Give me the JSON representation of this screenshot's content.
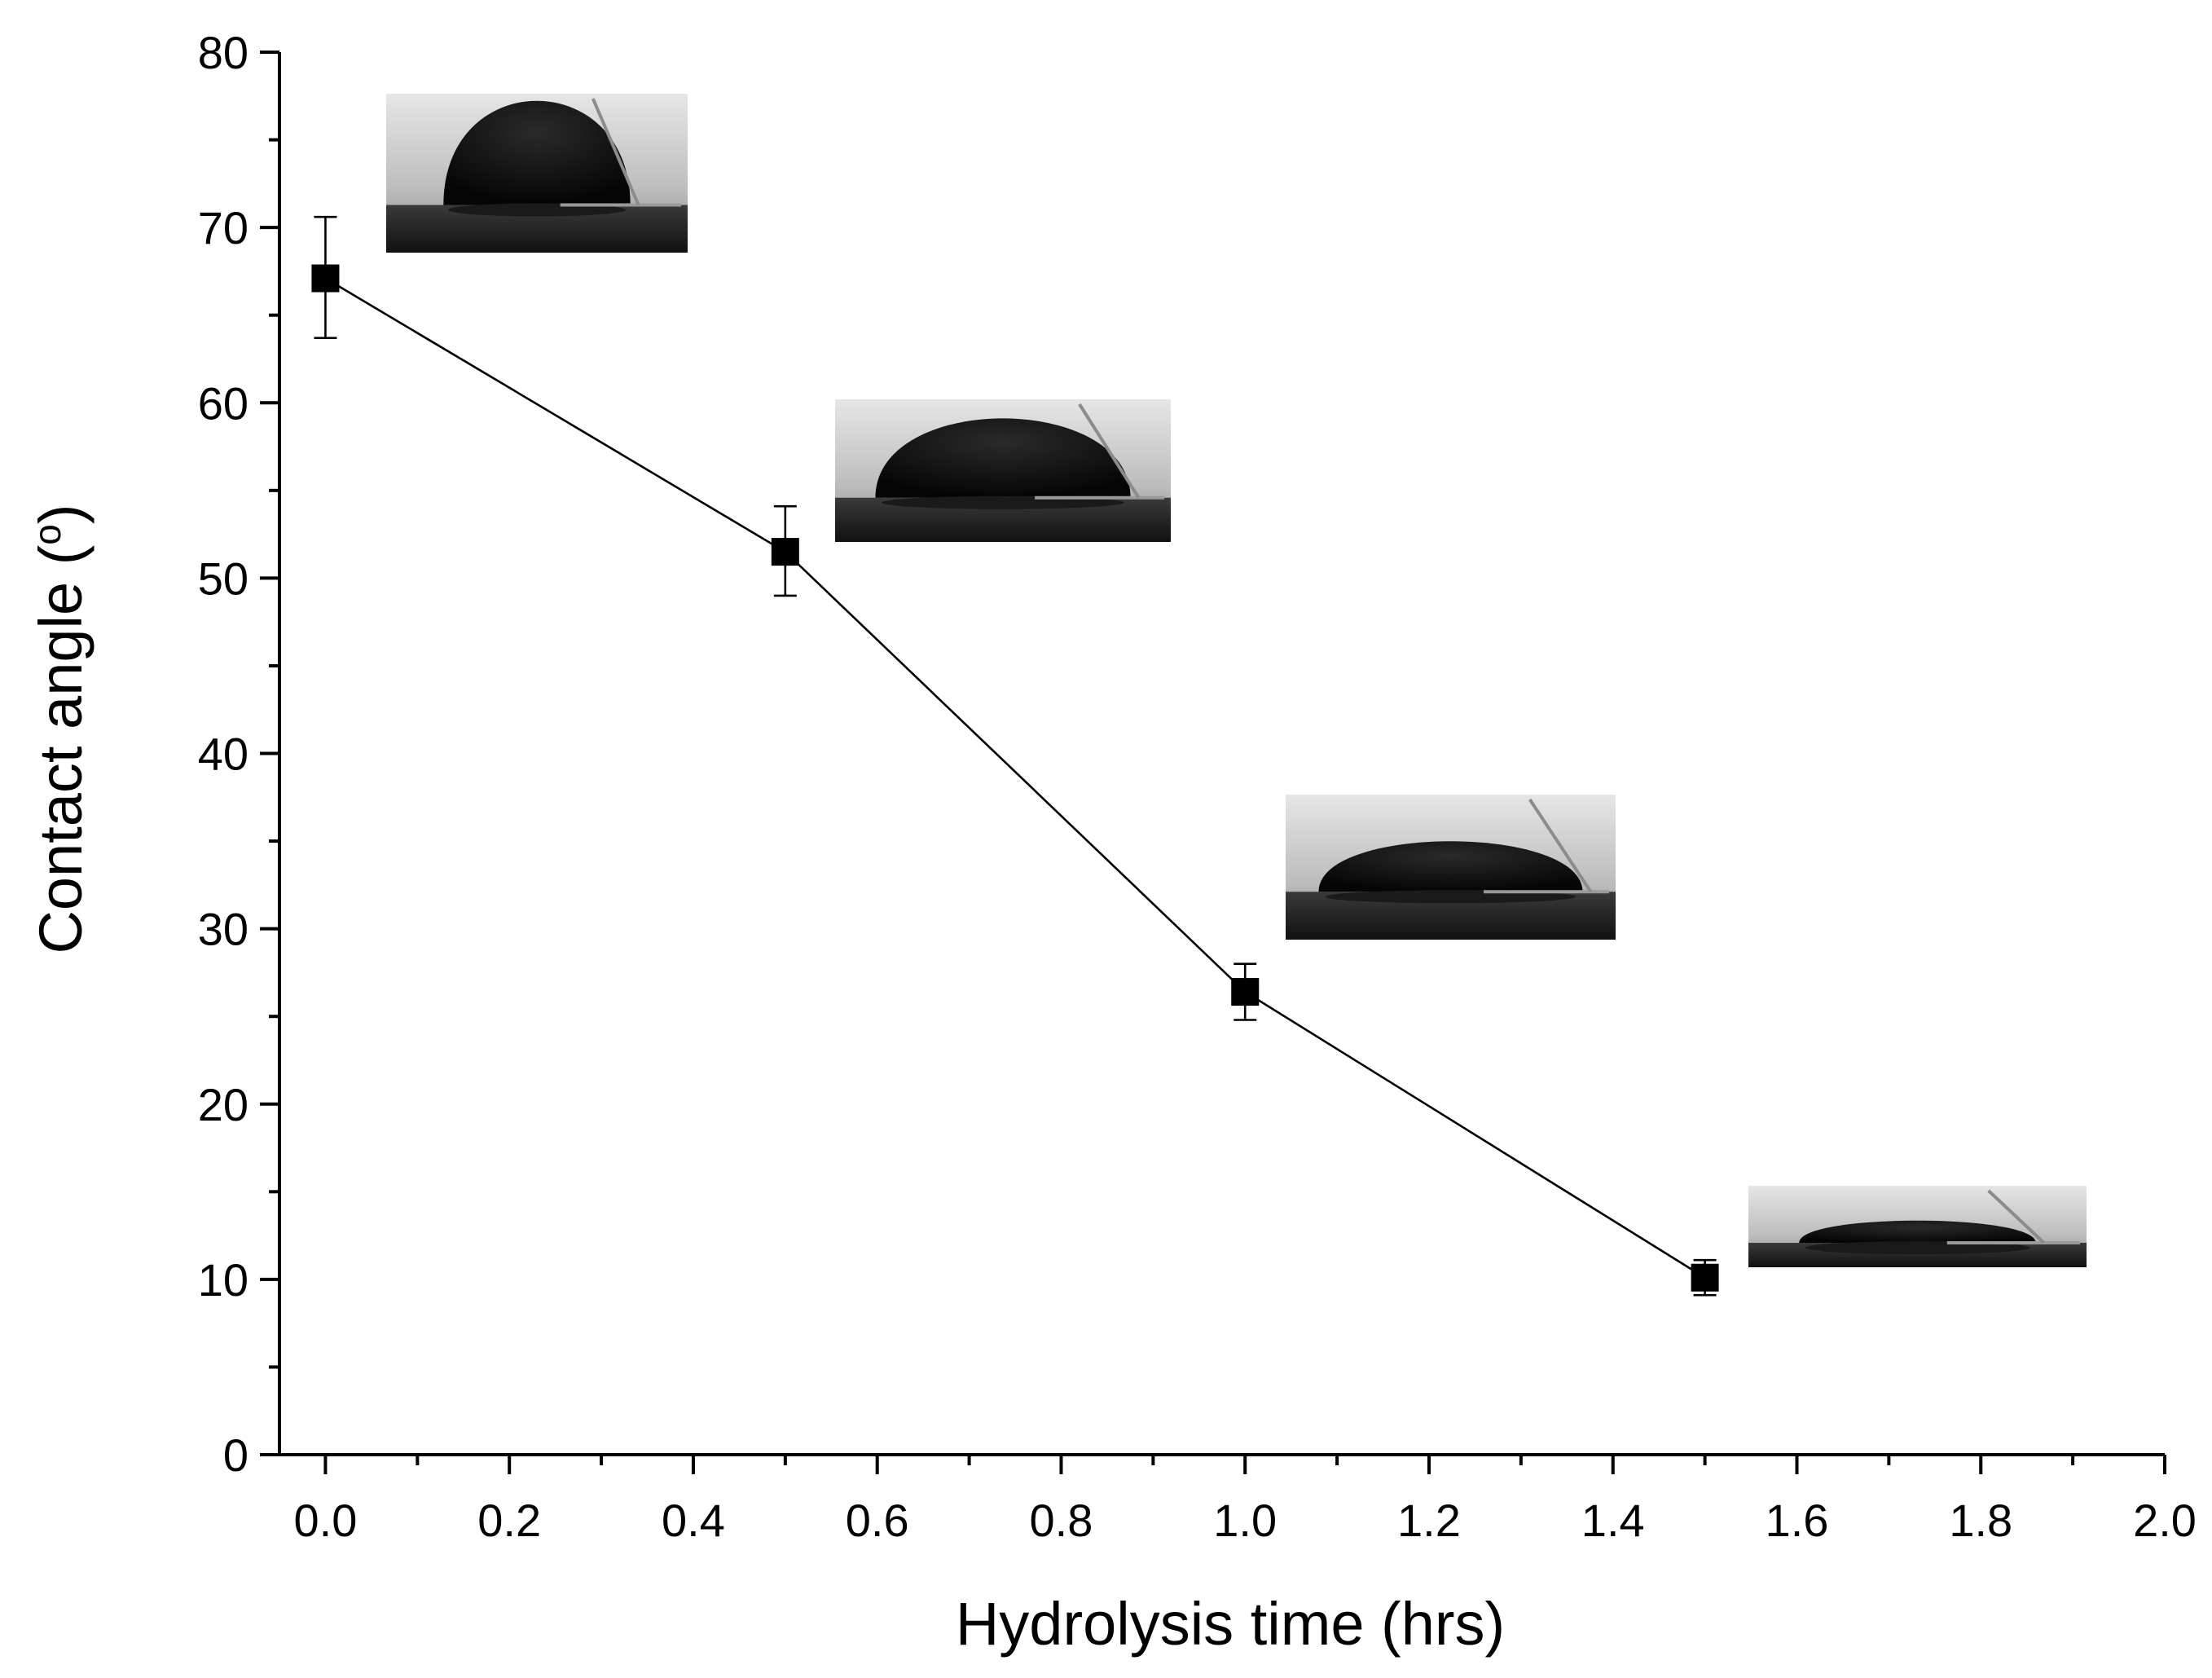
{
  "chart_data": {
    "type": "scatter",
    "title": "",
    "xlabel": "Hydrolysis time (hrs)",
    "ylabel_main": "Contact angle (",
    "ylabel_sup": "o",
    "ylabel_end": ")",
    "xlim": [
      -0.05,
      2.0
    ],
    "ylim": [
      0,
      80
    ],
    "x_ticks": [
      0.0,
      0.2,
      0.4,
      0.6,
      0.8,
      1.0,
      1.2,
      1.4,
      1.6,
      1.8,
      2.0
    ],
    "x_tick_labels": [
      "0.0",
      "0.2",
      "0.4",
      "0.6",
      "0.8",
      "1.0",
      "1.2",
      "1.4",
      "1.6",
      "1.8",
      "2.0"
    ],
    "y_ticks": [
      0,
      10,
      20,
      30,
      40,
      50,
      60,
      70,
      80
    ],
    "y_tick_labels": [
      "0",
      "10",
      "20",
      "30",
      "40",
      "50",
      "60",
      "70",
      "80"
    ],
    "grid": false,
    "legend": "none",
    "marker_color": "#000000",
    "series": [
      {
        "marker": "square",
        "line": "solid",
        "x": [
          0.0,
          0.5,
          1.0,
          1.5
        ],
        "y": [
          67.1,
          51.5,
          26.4,
          10.1
        ],
        "err_low": [
          63.7,
          49.0,
          24.8,
          9.1
        ],
        "err_high": [
          70.6,
          54.1,
          28.0,
          11.1
        ]
      }
    ],
    "inset_images": [
      {
        "name": "droplet-image-0h",
        "depicts": "water droplet profile photo",
        "near_x": 0.0,
        "angle": "steep"
      },
      {
        "name": "droplet-image-0.5h",
        "depicts": "water droplet profile photo",
        "near_x": 0.5,
        "angle": "medium"
      },
      {
        "name": "droplet-image-1h",
        "depicts": "water droplet profile photo",
        "near_x": 1.0,
        "angle": "shallow"
      },
      {
        "name": "droplet-image-1.5h",
        "depicts": "water droplet profile photo",
        "near_x": 1.5,
        "angle": "flat"
      }
    ]
  }
}
